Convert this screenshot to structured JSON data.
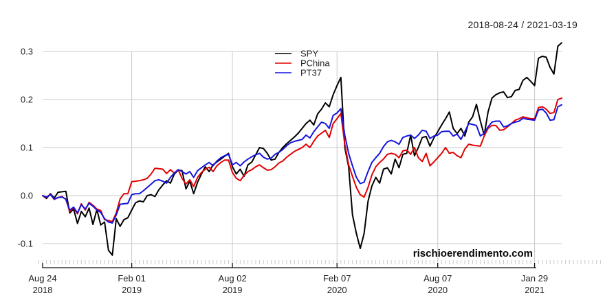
{
  "header": {
    "date_range": "2018-08-24 / 2021-03-19"
  },
  "watermark": {
    "text": "rischioerendimento.com"
  },
  "colors": {
    "grid": "#c9c9c9",
    "minor_tick": "#c8c8c8",
    "axis": "#111111",
    "label_text": "#222222",
    "spy": "#000000",
    "pchina": "#e10000",
    "pt37": "#1414dd"
  },
  "chart_data": {
    "type": "line",
    "title": "2018-08-24 / 2021-03-19",
    "x_unit": "weeks since 2018-08-24 (weekly cumulative return)",
    "x_tick_weeks": [
      0,
      23,
      49,
      76,
      102,
      127
    ],
    "x_tick_labels": [
      [
        "Aug 24",
        "2018"
      ],
      [
        "Feb 01",
        "2019"
      ],
      [
        "Aug 02",
        "2019"
      ],
      [
        "Feb 07",
        "2020"
      ],
      [
        "Aug 07",
        "2020"
      ],
      [
        "Jan 29",
        "2021"
      ]
    ],
    "y_ticks": [
      -0.1,
      0.0,
      0.1,
      0.2,
      0.3
    ],
    "ylim": [
      -0.13,
      0.33
    ],
    "grid": true,
    "legend_position": "top-center",
    "series": [
      {
        "name": "SPY",
        "color": "#000000",
        "values": [
          0.0,
          -0.006,
          0.004,
          -0.005,
          0.007,
          0.008,
          0.009,
          -0.036,
          -0.028,
          -0.058,
          -0.033,
          -0.044,
          -0.026,
          -0.06,
          -0.029,
          -0.061,
          -0.055,
          -0.114,
          -0.124,
          -0.048,
          -0.064,
          -0.05,
          -0.046,
          -0.03,
          -0.015,
          -0.011,
          -0.013,
          0.0,
          0.002,
          -0.002,
          0.012,
          0.022,
          0.031,
          0.026,
          0.045,
          0.053,
          0.052,
          0.014,
          0.03,
          0.004,
          0.028,
          0.045,
          0.06,
          0.05,
          0.064,
          0.07,
          0.076,
          0.082,
          0.088,
          0.06,
          0.045,
          0.055,
          0.04,
          0.064,
          0.07,
          0.085,
          0.1,
          0.098,
          0.088,
          0.074,
          0.076,
          0.09,
          0.1,
          0.108,
          0.115,
          0.122,
          0.13,
          0.14,
          0.15,
          0.157,
          0.147,
          0.17,
          0.18,
          0.193,
          0.185,
          0.21,
          0.229,
          0.246,
          0.1,
          0.06,
          -0.04,
          -0.079,
          -0.11,
          -0.079,
          -0.012,
          0.02,
          0.038,
          0.026,
          0.055,
          0.058,
          0.045,
          0.076,
          0.058,
          0.086,
          0.088,
          0.126,
          0.083,
          0.1,
          0.121,
          0.123,
          0.103,
          0.12,
          0.133,
          0.147,
          0.16,
          0.174,
          0.14,
          0.129,
          0.14,
          0.124,
          0.153,
          0.164,
          0.19,
          0.155,
          0.126,
          0.174,
          0.203,
          0.21,
          0.214,
          0.216,
          0.204,
          0.206,
          0.219,
          0.221,
          0.24,
          0.246,
          0.238,
          0.229,
          0.286,
          0.29,
          0.288,
          0.267,
          0.253,
          0.311,
          0.318
        ]
      },
      {
        "name": "PChina",
        "color": "#e10000",
        "values": [
          0.0,
          -0.004,
          0.003,
          -0.008,
          -0.004,
          -0.002,
          -0.008,
          -0.033,
          -0.025,
          -0.038,
          -0.017,
          -0.03,
          -0.014,
          -0.02,
          -0.028,
          -0.031,
          -0.05,
          -0.052,
          -0.054,
          -0.036,
          -0.007,
          0.004,
          0.004,
          0.029,
          0.03,
          0.031,
          0.033,
          0.036,
          0.045,
          0.057,
          0.056,
          0.055,
          0.046,
          0.054,
          0.047,
          0.054,
          0.036,
          0.024,
          0.033,
          0.019,
          0.038,
          0.048,
          0.055,
          0.059,
          0.05,
          0.062,
          0.069,
          0.074,
          0.074,
          0.048,
          0.036,
          0.031,
          0.042,
          0.05,
          0.054,
          0.06,
          0.064,
          0.058,
          0.053,
          0.054,
          0.06,
          0.068,
          0.072,
          0.08,
          0.086,
          0.092,
          0.096,
          0.1,
          0.107,
          0.1,
          0.113,
          0.124,
          0.13,
          0.136,
          0.121,
          0.15,
          0.16,
          0.171,
          0.107,
          0.064,
          0.04,
          0.017,
          0.002,
          -0.003,
          0.017,
          0.043,
          0.06,
          0.069,
          0.076,
          0.086,
          0.088,
          0.086,
          0.079,
          0.093,
          0.095,
          0.086,
          0.1,
          0.079,
          0.071,
          0.088,
          0.062,
          0.07,
          0.079,
          0.088,
          0.1,
          0.088,
          0.09,
          0.083,
          0.079,
          0.097,
          0.107,
          0.105,
          0.104,
          0.103,
          0.124,
          0.14,
          0.146,
          0.146,
          0.136,
          0.137,
          0.143,
          0.15,
          0.157,
          0.16,
          0.164,
          0.162,
          0.16,
          0.16,
          0.183,
          0.185,
          0.18,
          0.171,
          0.173,
          0.2,
          0.203
        ]
      },
      {
        "name": "PT37",
        "color": "#1414dd",
        "values": [
          0.0,
          -0.003,
          0.002,
          -0.007,
          -0.004,
          -0.003,
          -0.007,
          -0.03,
          -0.024,
          -0.036,
          -0.019,
          -0.028,
          -0.016,
          -0.022,
          -0.03,
          -0.035,
          -0.048,
          -0.055,
          -0.057,
          -0.04,
          -0.018,
          -0.017,
          -0.016,
          0.002,
          0.004,
          0.004,
          0.01,
          0.017,
          0.024,
          0.031,
          0.033,
          0.03,
          0.026,
          0.038,
          0.047,
          0.054,
          0.05,
          0.045,
          0.05,
          0.038,
          0.052,
          0.058,
          0.064,
          0.069,
          0.062,
          0.072,
          0.079,
          0.083,
          0.086,
          0.064,
          0.069,
          0.062,
          0.07,
          0.076,
          0.081,
          0.085,
          0.088,
          0.08,
          0.076,
          0.078,
          0.086,
          0.09,
          0.096,
          0.104,
          0.11,
          0.113,
          0.115,
          0.117,
          0.126,
          0.12,
          0.133,
          0.143,
          0.153,
          0.15,
          0.14,
          0.167,
          0.172,
          0.181,
          0.126,
          0.088,
          0.062,
          0.038,
          0.025,
          0.028,
          0.05,
          0.069,
          0.079,
          0.088,
          0.102,
          0.112,
          0.115,
          0.112,
          0.107,
          0.121,
          0.124,
          0.126,
          0.119,
          0.126,
          0.136,
          0.134,
          0.119,
          0.124,
          0.126,
          0.133,
          0.134,
          0.134,
          0.124,
          0.128,
          0.117,
          0.133,
          0.15,
          0.148,
          0.146,
          0.124,
          0.13,
          0.143,
          0.153,
          0.155,
          0.155,
          0.143,
          0.145,
          0.15,
          0.153,
          0.155,
          0.161,
          0.159,
          0.158,
          0.157,
          0.178,
          0.18,
          0.172,
          0.157,
          0.158,
          0.185,
          0.189
        ]
      }
    ]
  }
}
